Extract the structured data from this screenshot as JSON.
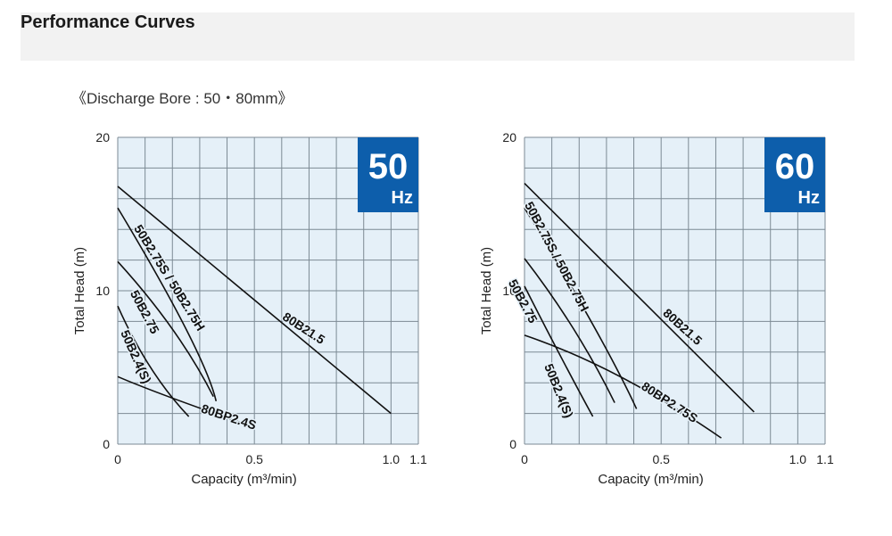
{
  "header": {
    "title": "Performance Curves"
  },
  "subtitle": "《Discharge Bore : 50・80mm》",
  "colors": {
    "plot_bg": "#e5f0f8",
    "grid": "#7c8a94",
    "badge": "#0d5eab",
    "curve": "#111111"
  },
  "chart_data": [
    {
      "type": "line",
      "badge": {
        "value": "50",
        "unit": "Hz"
      },
      "xlabel": "Capacity (m³/min)",
      "ylabel": "Total Head (m)",
      "xlim": [
        0,
        1.1
      ],
      "ylim": [
        0,
        20
      ],
      "xticks": [
        {
          "value": 0,
          "label": "0"
        },
        {
          "value": 0.5,
          "label": "0.5"
        },
        {
          "value": 1.0,
          "label": "1.0"
        },
        {
          "value": 1.1,
          "label": "1.1"
        }
      ],
      "yticks": [
        {
          "value": 0,
          "label": "0"
        },
        {
          "value": 10,
          "label": "10"
        },
        {
          "value": 20,
          "label": "20"
        }
      ],
      "grid": true,
      "series": [
        {
          "name": "80B21.5",
          "x": [
            0,
            1.0
          ],
          "y": [
            16.8,
            2.0
          ]
        },
        {
          "name": "50B2.75S / 50B2.75H",
          "x": [
            0,
            0.25,
            0.36
          ],
          "y": [
            15.4,
            7.5,
            2.8
          ]
        },
        {
          "name": "50B2.75",
          "x": [
            0,
            0.2,
            0.35
          ],
          "y": [
            11.9,
            7.5,
            3.1
          ]
        },
        {
          "name": "50B2.4(S)",
          "x": [
            0,
            0.12,
            0.26
          ],
          "y": [
            9.0,
            5.0,
            1.8
          ]
        },
        {
          "name": "80BP2.4S",
          "x": [
            0,
            0.2,
            0.5
          ],
          "y": [
            4.4,
            3.0,
            1.1
          ]
        }
      ]
    },
    {
      "type": "line",
      "badge": {
        "value": "60",
        "unit": "Hz"
      },
      "xlabel": "Capacity (m³/min)",
      "ylabel": "Total Head (m)",
      "xlim": [
        0,
        1.1
      ],
      "ylim": [
        0,
        20
      ],
      "xticks": [
        {
          "value": 0,
          "label": "0"
        },
        {
          "value": 0.5,
          "label": "0.5"
        },
        {
          "value": 1.0,
          "label": "1.0"
        },
        {
          "value": 1.1,
          "label": "1.1"
        }
      ],
      "yticks": [
        {
          "value": 0,
          "label": "0"
        },
        {
          "value": 10,
          "label": "10"
        },
        {
          "value": 20,
          "label": "20"
        }
      ],
      "grid": true,
      "series": [
        {
          "name": "80B21.5",
          "x": [
            0,
            0.84
          ],
          "y": [
            17.0,
            2.1
          ]
        },
        {
          "name": "50B2.75S / 50B2.75H",
          "x": [
            0,
            0.25,
            0.41
          ],
          "y": [
            15.4,
            7.8,
            2.3
          ]
        },
        {
          "name": "50B2.75",
          "x": [
            0,
            0.18,
            0.33
          ],
          "y": [
            12.1,
            7.5,
            2.7
          ]
        },
        {
          "name": "50B2.4(S)",
          "x": [
            0,
            0.13,
            0.25
          ],
          "y": [
            10.3,
            5.8,
            1.8
          ]
        },
        {
          "name": "80BP2.75S",
          "x": [
            0,
            0.35,
            0.72
          ],
          "y": [
            7.1,
            4.4,
            0.4
          ]
        }
      ]
    }
  ]
}
